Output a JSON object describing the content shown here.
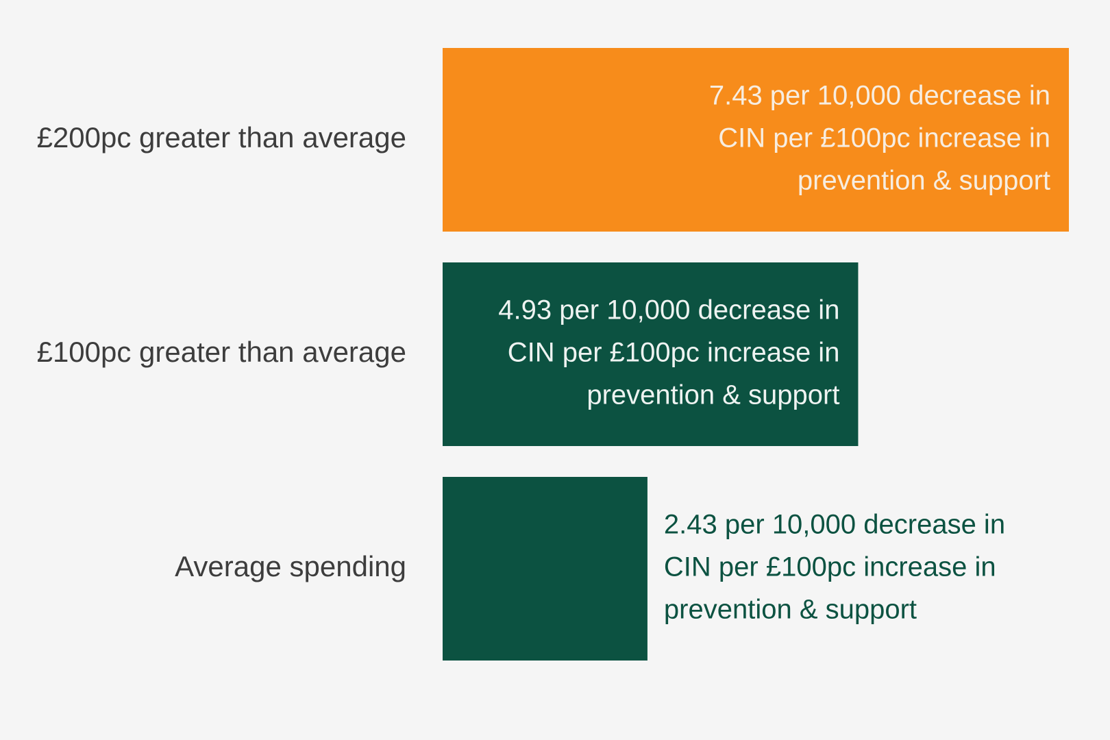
{
  "chart_data": {
    "type": "bar",
    "orientation": "horizontal",
    "title": "",
    "xlabel": "",
    "ylabel": "",
    "categories": [
      "£200pc greater than average",
      "£100pc greater than average",
      "Average spending"
    ],
    "values": [
      7.43,
      4.93,
      2.43
    ],
    "xlim": [
      0,
      7.43
    ],
    "grid": false,
    "legend": "none",
    "bar_colors": [
      "#f78c1b",
      "#0c5241",
      "#0c5241"
    ],
    "data_labels": [
      [
        "7.43 per 10,000 decrease in",
        "CIN per £100pc increase in",
        "prevention & support"
      ],
      [
        "4.93 per 10,000 decrease in",
        "CIN per £100pc increase in",
        "prevention & support"
      ],
      [
        "2.43 per 10,000 decrease in",
        "CIN per £100pc increase in",
        "prevention & support"
      ]
    ],
    "label_position": [
      "inside-right",
      "inside-right",
      "outside-left"
    ],
    "label_colors": [
      "#f7ede0",
      "#eef3f1",
      "#0c5241"
    ]
  },
  "colors": {
    "background": "#f5f5f5",
    "category_text": "#3d3d3d"
  }
}
